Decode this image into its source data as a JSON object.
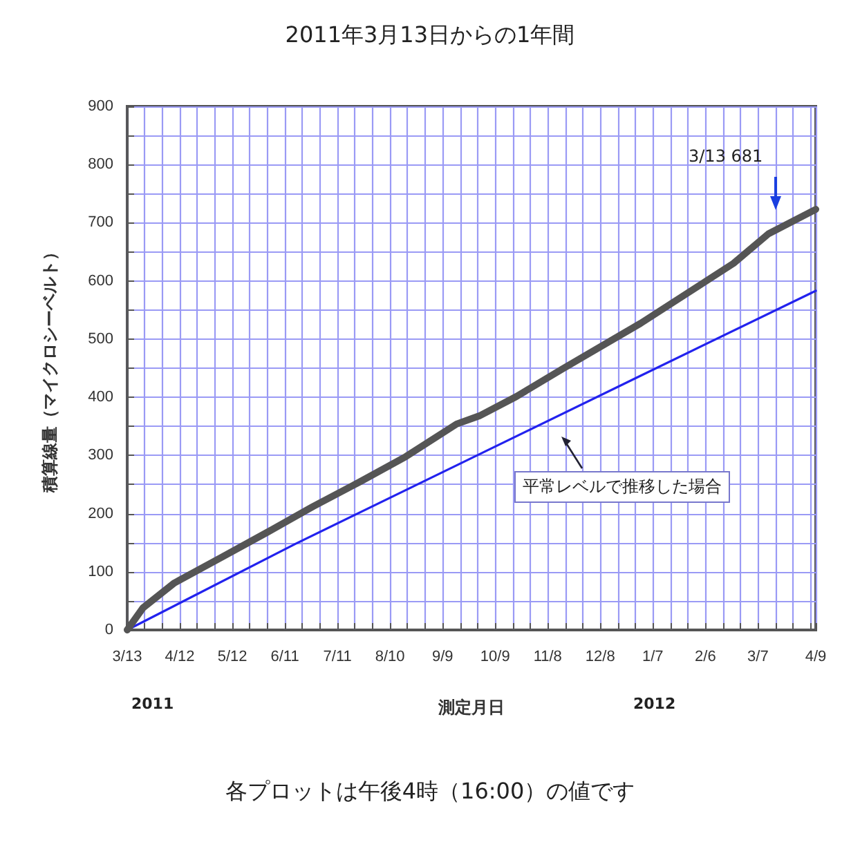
{
  "chart_data": {
    "type": "line",
    "title": "2011年3月13日からの1年間",
    "xlabel": "測定月日",
    "ylabel": "積算線量（マイクロシーベルト）",
    "series": [
      {
        "color": "#555555",
        "x": [
          "2011-03-13",
          "2011-03-22",
          "2011-04-09",
          "2011-05-06",
          "2011-06-01",
          "2011-06-27",
          "2011-07-24",
          "2011-08-19",
          "2011-09-17",
          "2011-09-30",
          "2011-10-21",
          "2011-11-16",
          "2011-12-31",
          "2012-02-22",
          "2012-03-13",
          "2012-04-09"
        ],
        "values": [
          0,
          38,
          81,
          125,
          168,
          212,
          255,
          298,
          354,
          368,
          401,
          448,
          527,
          630,
          681,
          723
        ]
      },
      {
        "color": "#2222ee",
        "x": [
          "2011-03-13",
          "2011-06-17",
          "2011-09-30",
          "2011-12-31",
          "2012-04-09"
        ],
        "values": [
          0,
          148,
          302,
          437,
          583
        ]
      }
    ],
    "xlim": [
      "2011-03-13",
      "2012-04-09"
    ],
    "xticks": [
      {
        "value": "2011-03-13",
        "label": "3/13"
      },
      {
        "value": "2011-03-23",
        "label": null
      },
      {
        "value": "2011-04-02",
        "label": null
      },
      {
        "value": "2011-04-12",
        "label": "4/12"
      },
      {
        "value": "2011-04-22",
        "label": null
      },
      {
        "value": "2011-05-02",
        "label": null
      },
      {
        "value": "2011-05-12",
        "label": "5/12"
      },
      {
        "value": "2011-05-22",
        "label": null
      },
      {
        "value": "2011-06-01",
        "label": null
      },
      {
        "value": "2011-06-11",
        "label": "6/11"
      },
      {
        "value": "2011-06-21",
        "label": null
      },
      {
        "value": "2011-07-01",
        "label": null
      },
      {
        "value": "2011-07-11",
        "label": "7/11"
      },
      {
        "value": "2011-07-21",
        "label": null
      },
      {
        "value": "2011-07-31",
        "label": null
      },
      {
        "value": "2011-08-10",
        "label": "8/10"
      },
      {
        "value": "2011-08-20",
        "label": null
      },
      {
        "value": "2011-08-30",
        "label": null
      },
      {
        "value": "2011-09-09",
        "label": "9/9"
      },
      {
        "value": "2011-09-19",
        "label": null
      },
      {
        "value": "2011-09-29",
        "label": null
      },
      {
        "value": "2011-10-09",
        "label": "10/9"
      },
      {
        "value": "2011-10-19",
        "label": null
      },
      {
        "value": "2011-10-29",
        "label": null
      },
      {
        "value": "2011-11-08",
        "label": "11/8"
      },
      {
        "value": "2011-11-18",
        "label": null
      },
      {
        "value": "2011-11-28",
        "label": null
      },
      {
        "value": "2011-12-08",
        "label": "12/8"
      },
      {
        "value": "2011-12-18",
        "label": null
      },
      {
        "value": "2011-12-28",
        "label": null
      },
      {
        "value": "2012-01-07",
        "label": "1/7"
      },
      {
        "value": "2012-01-17",
        "label": null
      },
      {
        "value": "2012-01-27",
        "label": null
      },
      {
        "value": "2012-02-06",
        "label": "2/6"
      },
      {
        "value": "2012-02-16",
        "label": null
      },
      {
        "value": "2012-02-26",
        "label": null
      },
      {
        "value": "2012-03-07",
        "label": "3/7"
      },
      {
        "value": "2012-03-17",
        "label": null
      },
      {
        "value": "2012-03-27",
        "label": null
      },
      {
        "value": "2012-04-06",
        "label": null
      },
      {
        "value": "2012-04-09",
        "label": "4/9"
      }
    ],
    "ylim": [
      0,
      900
    ],
    "yticks": [
      0,
      {
        "value": 50,
        "label": null
      },
      100,
      {
        "value": 150,
        "label": null
      },
      200,
      {
        "value": 250,
        "label": null
      },
      300,
      {
        "value": 350,
        "label": null
      },
      400,
      {
        "value": 450,
        "label": null
      },
      500,
      {
        "value": 550,
        "label": null
      },
      600,
      {
        "value": 650,
        "label": null
      },
      700,
      {
        "value": 750,
        "label": null
      },
      800,
      {
        "value": 850,
        "label": null
      },
      900
    ],
    "grid": true,
    "line_style": "solid",
    "annotations": [
      "3/13  681",
      "平常レベルで推移した場合",
      "2011",
      "2012",
      "各プロットは午後4時（16:00）の値です"
    ]
  }
}
